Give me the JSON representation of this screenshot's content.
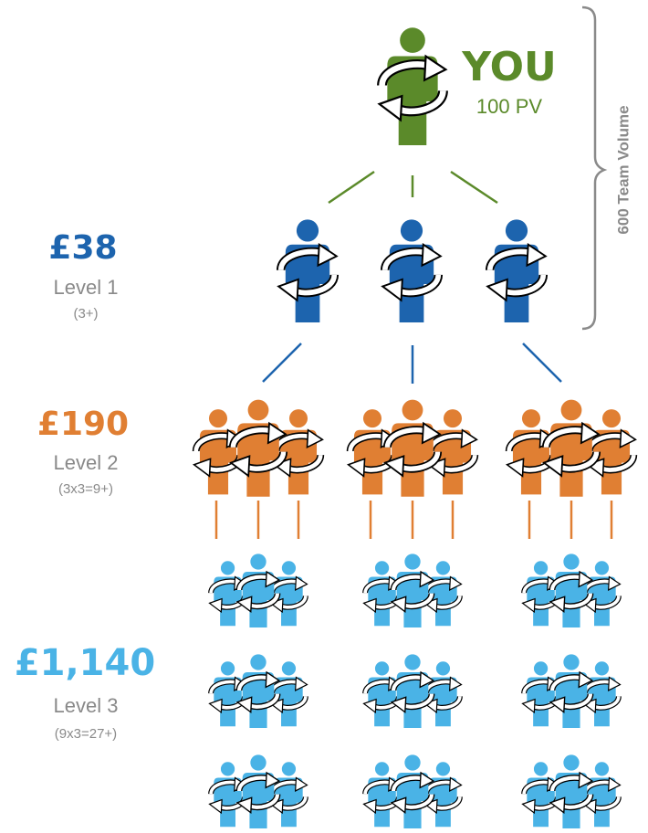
{
  "you": {
    "label": "YOU",
    "volume": "100 PV"
  },
  "team_volume": "600 Team Volume",
  "levels": [
    {
      "amount": "£38",
      "name": "Level 1",
      "count": "(3+)"
    },
    {
      "amount": "£190",
      "name": "Level 2",
      "count": "(3x3=9+)"
    },
    {
      "amount": "£1,140",
      "name": "Level 3",
      "count": "(9x3=27+)"
    }
  ]
}
